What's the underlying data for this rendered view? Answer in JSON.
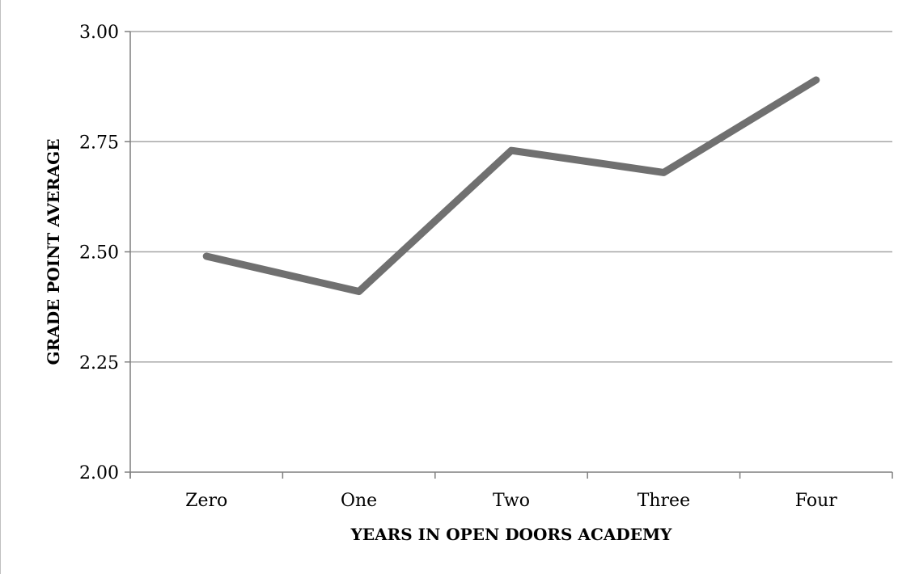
{
  "chart_data": {
    "type": "line",
    "title": "",
    "xlabel": "YEARS IN OPEN DOORS ACADEMY",
    "ylabel": "GRADE POINT AVERAGE",
    "categories": [
      "Zero",
      "One",
      "Two",
      "Three",
      "Four"
    ],
    "series": [
      {
        "values": [
          2.49,
          2.41,
          2.73,
          2.68,
          2.89
        ]
      }
    ],
    "ylim": [
      2.0,
      3.0
    ],
    "yticks": [
      "2.00",
      "2.25",
      "2.50",
      "2.75",
      "3.00"
    ],
    "grid": true,
    "legend": "none",
    "colors": {
      "line": "#707070",
      "grid": "#a6a6a6",
      "axis": "#7f7f7f"
    }
  }
}
